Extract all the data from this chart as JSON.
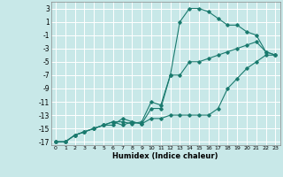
{
  "xlabel": "Humidex (Indice chaleur)",
  "ylabel": "",
  "bg_color": "#c8e8e8",
  "grid_color": "#ffffff",
  "line_color": "#1a7a6e",
  "xlim": [
    -0.5,
    23.5
  ],
  "ylim": [
    -17.5,
    4.0
  ],
  "xticks": [
    0,
    1,
    2,
    3,
    4,
    5,
    6,
    7,
    8,
    9,
    10,
    11,
    12,
    13,
    14,
    15,
    16,
    17,
    18,
    19,
    20,
    21,
    22,
    23
  ],
  "yticks": [
    3,
    1,
    -1,
    -3,
    -5,
    -7,
    -9,
    -11,
    -13,
    -15,
    -17
  ],
  "line1_x": [
    0,
    1,
    2,
    3,
    4,
    5,
    6,
    7,
    8,
    9,
    10,
    11,
    12,
    13,
    14,
    15,
    16,
    17,
    18,
    19,
    20,
    21,
    22,
    23
  ],
  "line1_y": [
    -17,
    -17,
    -16,
    -15.5,
    -15,
    -14.5,
    -14,
    -14,
    -14.3,
    -14,
    -11,
    -11.5,
    -7,
    1,
    3,
    3,
    2.5,
    1.5,
    0.5,
    0.5,
    -0.5,
    -1,
    -3.5,
    -4
  ],
  "line2_x": [
    0,
    1,
    2,
    3,
    4,
    5,
    6,
    7,
    8,
    9,
    10,
    11,
    12,
    13,
    14,
    15,
    16,
    17,
    18,
    19,
    20,
    21,
    22,
    23
  ],
  "line2_y": [
    -17,
    -17,
    -16,
    -15.5,
    -15,
    -14.5,
    -14,
    -14.5,
    -14,
    -14.3,
    -12,
    -12,
    -7,
    -7,
    -5,
    -5,
    -4.5,
    -4,
    -3.5,
    -3,
    -2.5,
    -2,
    -3.5,
    -4
  ],
  "line3_x": [
    0,
    1,
    2,
    3,
    4,
    5,
    6,
    7,
    8,
    9,
    10,
    11,
    12,
    13,
    14,
    15,
    16,
    17,
    18,
    19,
    20,
    21,
    22,
    23
  ],
  "line3_y": [
    -17,
    -17,
    -16,
    -15.5,
    -15,
    -14.5,
    -14.5,
    -13.5,
    -14,
    -14.3,
    -13.5,
    -13.5,
    -13,
    -13,
    -13,
    -13,
    -13,
    -12,
    -9,
    -7.5,
    -6,
    -5,
    -4,
    -4
  ]
}
